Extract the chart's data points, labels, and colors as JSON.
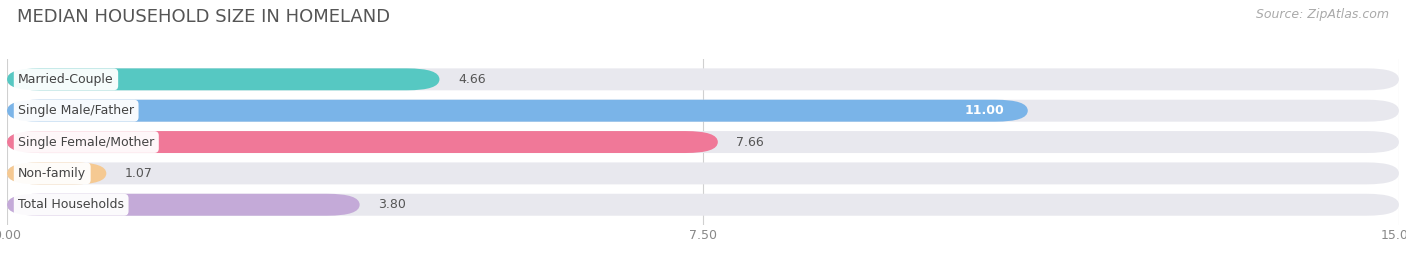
{
  "title": "MEDIAN HOUSEHOLD SIZE IN HOMELAND",
  "source": "Source: ZipAtlas.com",
  "categories": [
    "Married-Couple",
    "Single Male/Father",
    "Single Female/Mother",
    "Non-family",
    "Total Households"
  ],
  "values": [
    4.66,
    11.0,
    7.66,
    1.07,
    3.8
  ],
  "bar_colors": [
    "#56c8c2",
    "#7ab4e8",
    "#f07898",
    "#f5c992",
    "#c4aad8"
  ],
  "bar_bg_color": "#e8e8ee",
  "value_inside": [
    false,
    true,
    false,
    false,
    false
  ],
  "xlim": [
    0,
    15.0
  ],
  "xticks": [
    0.0,
    7.5,
    15.0
  ],
  "title_fontsize": 13,
  "source_fontsize": 9,
  "tick_fontsize": 9,
  "bar_label_fontsize": 9,
  "cat_label_fontsize": 9,
  "figsize": [
    14.06,
    2.68
  ],
  "dpi": 100
}
